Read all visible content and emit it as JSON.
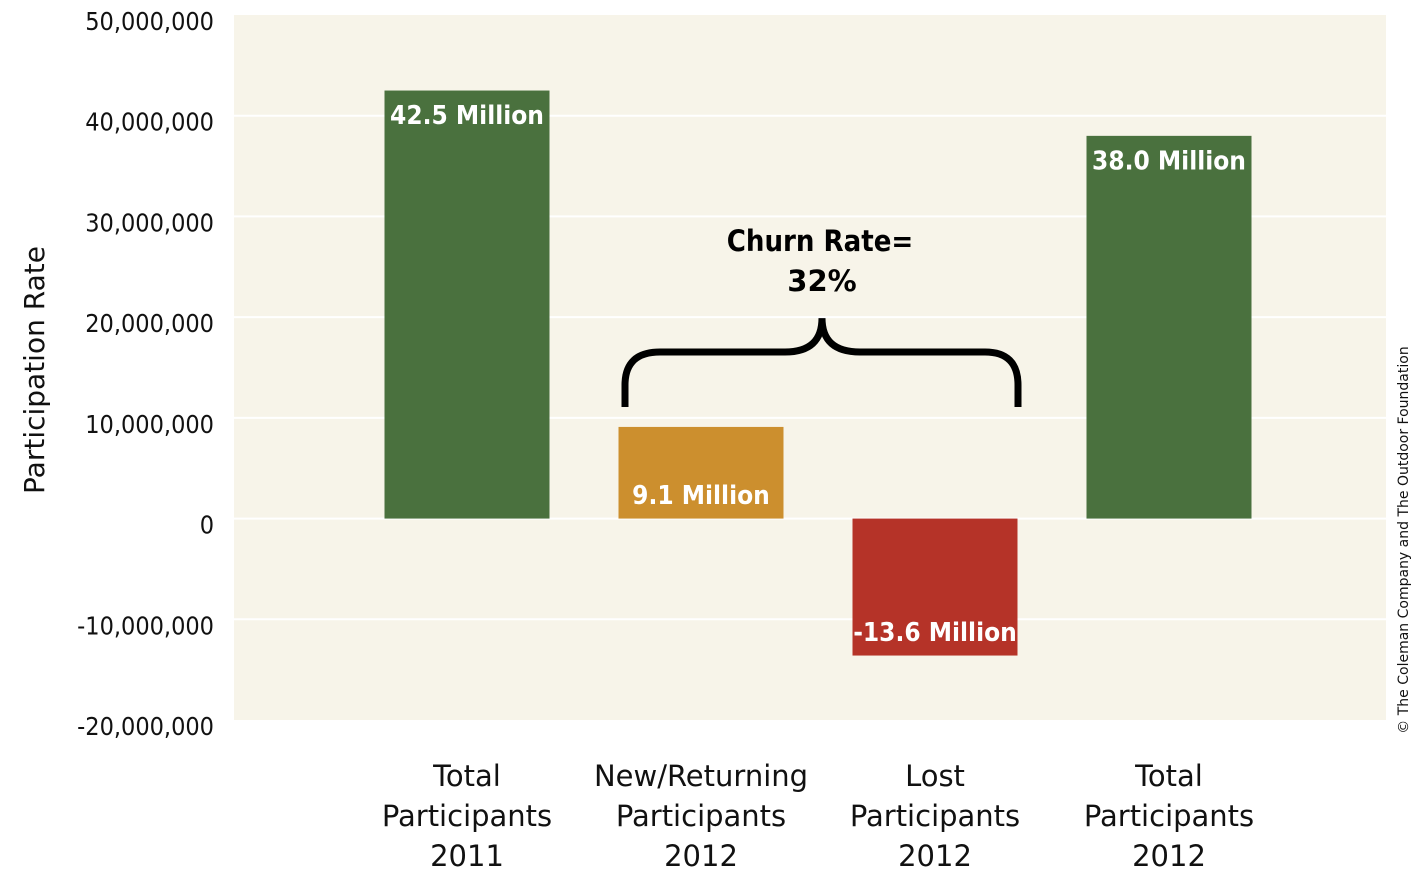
{
  "chart_data": {
    "type": "bar",
    "y_label": "Participation Rate",
    "categories": [
      "Total Participants 2011",
      "New/Returning Participants 2012",
      "Lost Participants 2012",
      "Total Participants 2012"
    ],
    "values": [
      42500000,
      9100000,
      -13600000,
      38000000
    ],
    "value_labels": [
      "42.5 Million",
      "9.1 Million",
      "-13.6 Million",
      "38.0 Million"
    ],
    "colors": [
      "#4a713e",
      "#cc8f2e",
      "#b53328",
      "#4a713e"
    ],
    "ylim": [
      -20000000,
      50000000
    ],
    "yticks": [
      {
        "value": -20000000,
        "label": "-20,000,000"
      },
      {
        "value": -10000000,
        "label": "-10,000,000"
      },
      0,
      {
        "value": 10000000,
        "label": "10,000,000"
      },
      {
        "value": 20000000,
        "label": "20,000,000"
      },
      {
        "value": 30000000,
        "label": "30,000,000"
      },
      {
        "value": 40000000,
        "label": "40,000,000"
      },
      {
        "value": 50000000,
        "label": "50,000,000"
      }
    ],
    "grid": true,
    "annotation": [
      "Churn Rate=",
      "32%"
    ],
    "credit": "© The Coleman Company and The Outdoor Foundation"
  }
}
